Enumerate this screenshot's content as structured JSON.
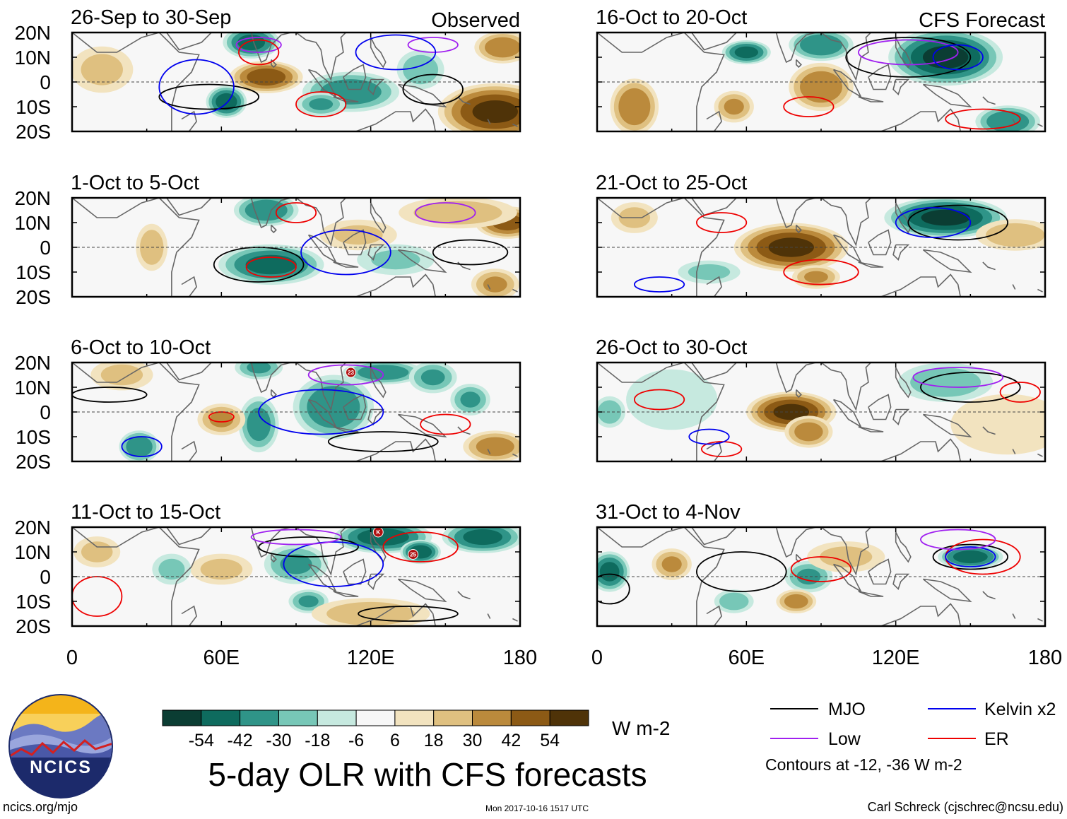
{
  "chart_data": {
    "type": "heatmap",
    "title": "5-day OLR with CFS forecasts",
    "variable": "OLR anomaly",
    "units": "W m-2",
    "xlim": [
      0,
      180
    ],
    "ylim": [
      -20,
      20
    ],
    "xticks": [
      "0",
      "60E",
      "120E",
      "180"
    ],
    "yticks": [
      "20N",
      "10N",
      "0",
      "10S",
      "20S"
    ],
    "contour_note": "Contours at -12, -36 W m-2",
    "color_levels": [
      -54,
      -42,
      -30,
      -18,
      -6,
      6,
      18,
      30,
      42,
      54
    ],
    "color_levels_text": [
      "-54",
      "-42",
      "-30",
      "-18",
      "-6",
      "6",
      "18",
      "30",
      "42",
      "54"
    ],
    "palette": [
      "#0b3d33",
      "#0e6b5e",
      "#2f9488",
      "#77c7b7",
      "#c6e9df",
      "#f7f7f7",
      "#f2e3bf",
      "#dfc080",
      "#bb8a3c",
      "#8c5a15",
      "#4f3308"
    ],
    "legend": [
      {
        "label": "MJO",
        "color": "#000000"
      },
      {
        "label": "Kelvin x2",
        "color": "#0000ee"
      },
      {
        "label": "Low",
        "color": "#a020f0"
      },
      {
        "label": "ER",
        "color": "#ee0000"
      }
    ],
    "panels": [
      {
        "period": "26-Sep to 30-Sep",
        "tag": "Observed",
        "col": 0,
        "row": 0,
        "blobs": [
          {
            "lon": 78,
            "lat": 2,
            "v": 48,
            "sx": 9,
            "sy": 4
          },
          {
            "lon": 170,
            "lat": -12,
            "v": 55,
            "sx": 14,
            "sy": 7
          },
          {
            "lon": 173,
            "lat": 14,
            "v": 38,
            "sx": 7,
            "sy": 4
          },
          {
            "lon": 72,
            "lat": 16,
            "v": -45,
            "sx": 7,
            "sy": 4
          },
          {
            "lon": 112,
            "lat": -4,
            "v": -38,
            "sx": 12,
            "sy": 5
          },
          {
            "lon": 62,
            "lat": -8,
            "v": -48,
            "sx": 5,
            "sy": 4
          },
          {
            "lon": 12,
            "lat": 5,
            "v": 20,
            "sx": 8,
            "sy": 6
          },
          {
            "lon": 100,
            "lat": -9,
            "v": -30,
            "sx": 6,
            "sy": 3
          },
          {
            "lon": 140,
            "lat": 5,
            "v": -25,
            "sx": 6,
            "sy": 5
          }
        ],
        "contours": [
          {
            "type": "Low",
            "lon": 75,
            "lat": 15,
            "rx": 9,
            "ry": 3
          },
          {
            "type": "Low",
            "lon": 145,
            "lat": 15,
            "rx": 10,
            "ry": 3
          },
          {
            "type": "MJO",
            "lon": 55,
            "lat": -6,
            "rx": 20,
            "ry": 5
          },
          {
            "type": "MJO",
            "lon": 145,
            "lat": -3,
            "rx": 12,
            "ry": 6
          },
          {
            "type": "ER",
            "lon": 100,
            "lat": -9,
            "rx": 10,
            "ry": 5
          },
          {
            "type": "ER",
            "lon": 75,
            "lat": 12,
            "rx": 8,
            "ry": 5
          },
          {
            "type": "Kelvin x2",
            "lon": 50,
            "lat": -2,
            "rx": 15,
            "ry": 11
          },
          {
            "type": "Kelvin x2",
            "lon": 130,
            "lat": 12,
            "rx": 16,
            "ry": 7
          }
        ]
      },
      {
        "period": "1-Oct to 5-Oct",
        "tag": "",
        "col": 0,
        "row": 1,
        "blobs": [
          {
            "lon": 80,
            "lat": -7,
            "v": -45,
            "sx": 13,
            "sy": 5
          },
          {
            "lon": 78,
            "lat": 15,
            "v": -40,
            "sx": 8,
            "sy": 4
          },
          {
            "lon": 150,
            "lat": 16,
            "v": -38,
            "sx": 6,
            "sy": 3
          },
          {
            "lon": 175,
            "lat": 10,
            "v": 45,
            "sx": 8,
            "sy": 4
          },
          {
            "lon": 155,
            "lat": 14,
            "v": 25,
            "sx": 15,
            "sy": 4
          },
          {
            "lon": 32,
            "lat": 0,
            "v": 25,
            "sx": 4,
            "sy": 6
          },
          {
            "lon": 115,
            "lat": 5,
            "v": 18,
            "sx": 10,
            "sy": 4
          },
          {
            "lon": 170,
            "lat": -15,
            "v": 30,
            "sx": 6,
            "sy": 4
          },
          {
            "lon": 130,
            "lat": -5,
            "v": -18,
            "sx": 10,
            "sy": 4
          }
        ],
        "contours": [
          {
            "type": "MJO",
            "lon": 75,
            "lat": -7,
            "rx": 18,
            "ry": 7
          },
          {
            "type": "MJO",
            "lon": 160,
            "lat": -2,
            "rx": 15,
            "ry": 5
          },
          {
            "type": "Low",
            "lon": 150,
            "lat": 14,
            "rx": 12,
            "ry": 4
          },
          {
            "type": "Kelvin x2",
            "lon": 110,
            "lat": -2,
            "rx": 18,
            "ry": 9
          },
          {
            "type": "ER",
            "lon": 80,
            "lat": -8,
            "rx": 10,
            "ry": 4
          },
          {
            "type": "ER",
            "lon": 90,
            "lat": 14,
            "rx": 8,
            "ry": 4
          }
        ]
      },
      {
        "period": "6-Oct to 10-Oct",
        "tag": "",
        "col": 0,
        "row": 2,
        "blobs": [
          {
            "lon": 105,
            "lat": 2,
            "v": -40,
            "sx": 10,
            "sy": 8
          },
          {
            "lon": 75,
            "lat": -5,
            "v": -35,
            "sx": 5,
            "sy": 7
          },
          {
            "lon": 27,
            "lat": -14,
            "v": -40,
            "sx": 5,
            "sy": 4
          },
          {
            "lon": 125,
            "lat": 16,
            "v": -38,
            "sx": 10,
            "sy": 3
          },
          {
            "lon": 145,
            "lat": 14,
            "v": -30,
            "sx": 6,
            "sy": 4
          },
          {
            "lon": 160,
            "lat": 5,
            "v": -30,
            "sx": 5,
            "sy": 4
          },
          {
            "lon": 60,
            "lat": -3,
            "v": 30,
            "sx": 6,
            "sy": 4
          },
          {
            "lon": 170,
            "lat": -14,
            "v": 35,
            "sx": 8,
            "sy": 4
          },
          {
            "lon": 20,
            "lat": 15,
            "v": 20,
            "sx": 8,
            "sy": 4
          },
          {
            "lon": 75,
            "lat": 18,
            "v": -30,
            "sx": 6,
            "sy": 3
          }
        ],
        "contours": [
          {
            "type": "MJO",
            "lon": 125,
            "lat": -12,
            "rx": 22,
            "ry": 4
          },
          {
            "type": "MJO",
            "lon": 15,
            "lat": 7,
            "rx": 15,
            "ry": 3
          },
          {
            "type": "Low",
            "lon": 110,
            "lat": 15,
            "rx": 15,
            "ry": 4
          },
          {
            "type": "Kelvin x2",
            "lon": 100,
            "lat": 0,
            "rx": 25,
            "ry": 9
          },
          {
            "type": "Kelvin x2",
            "lon": 28,
            "lat": -14,
            "rx": 8,
            "ry": 4
          },
          {
            "type": "ER",
            "lon": 150,
            "lat": -5,
            "rx": 10,
            "ry": 4
          },
          {
            "type": "ER",
            "lon": 60,
            "lat": -2,
            "rx": 5,
            "ry": 2
          }
        ],
        "markers": [
          {
            "lon": 112,
            "lat": 16,
            "label": "23"
          }
        ]
      },
      {
        "period": "11-Oct to 15-Oct",
        "tag": "",
        "col": 0,
        "row": 3,
        "blobs": [
          {
            "lon": 125,
            "lat": 16,
            "v": -48,
            "sx": 12,
            "sy": 4
          },
          {
            "lon": 165,
            "lat": 16,
            "v": -45,
            "sx": 10,
            "sy": 4
          },
          {
            "lon": 140,
            "lat": 10,
            "v": -50,
            "sx": 5,
            "sy": 3
          },
          {
            "lon": 90,
            "lat": 5,
            "v": -30,
            "sx": 8,
            "sy": 5
          },
          {
            "lon": 95,
            "lat": -10,
            "v": -30,
            "sx": 5,
            "sy": 3
          },
          {
            "lon": 120,
            "lat": -15,
            "v": 25,
            "sx": 15,
            "sy": 4
          },
          {
            "lon": 60,
            "lat": 3,
            "v": 20,
            "sx": 8,
            "sy": 4
          },
          {
            "lon": 10,
            "lat": 10,
            "v": 20,
            "sx": 6,
            "sy": 4
          },
          {
            "lon": 40,
            "lat": 3,
            "v": -20,
            "sx": 5,
            "sy": 4
          }
        ],
        "contours": [
          {
            "type": "MJO",
            "lon": 135,
            "lat": -15,
            "rx": 20,
            "ry": 3
          },
          {
            "type": "MJO",
            "lon": 95,
            "lat": 12,
            "rx": 20,
            "ry": 4
          },
          {
            "type": "ER",
            "lon": 10,
            "lat": -8,
            "rx": 10,
            "ry": 8
          },
          {
            "type": "ER",
            "lon": 140,
            "lat": 12,
            "rx": 15,
            "ry": 6
          },
          {
            "type": "Kelvin x2",
            "lon": 105,
            "lat": 5,
            "rx": 20,
            "ry": 9
          },
          {
            "type": "Low",
            "lon": 90,
            "lat": 16,
            "rx": 18,
            "ry": 3
          }
        ],
        "markers": [
          {
            "lon": 123,
            "lat": 18,
            "label": "K"
          },
          {
            "lon": 137,
            "lat": 9,
            "label": "25"
          }
        ]
      },
      {
        "period": "16-Oct to 20-Oct",
        "tag": "CFS Forecast",
        "col": 1,
        "row": 0,
        "blobs": [
          {
            "lon": 140,
            "lat": 10,
            "v": -55,
            "sx": 14,
            "sy": 7
          },
          {
            "lon": 90,
            "lat": 15,
            "v": -40,
            "sx": 8,
            "sy": 4
          },
          {
            "lon": 60,
            "lat": 12,
            "v": -45,
            "sx": 6,
            "sy": 3
          },
          {
            "lon": 165,
            "lat": -16,
            "v": -40,
            "sx": 8,
            "sy": 4
          },
          {
            "lon": 90,
            "lat": -2,
            "v": 40,
            "sx": 8,
            "sy": 6
          },
          {
            "lon": 15,
            "lat": -10,
            "v": 40,
            "sx": 6,
            "sy": 7
          },
          {
            "lon": 55,
            "lat": -10,
            "v": 30,
            "sx": 5,
            "sy": 4
          }
        ],
        "contours": [
          {
            "type": "MJO",
            "lon": 125,
            "lat": 10,
            "rx": 25,
            "ry": 8
          },
          {
            "type": "ER",
            "lon": 85,
            "lat": -10,
            "rx": 10,
            "ry": 4
          },
          {
            "type": "ER",
            "lon": 155,
            "lat": -15,
            "rx": 15,
            "ry": 4
          },
          {
            "type": "Low",
            "lon": 125,
            "lat": 12,
            "rx": 20,
            "ry": 5
          },
          {
            "type": "Kelvin x2",
            "lon": 145,
            "lat": 10,
            "rx": 10,
            "ry": 5
          }
        ]
      },
      {
        "period": "21-Oct to 25-Oct",
        "tag": "",
        "col": 1,
        "row": 1,
        "blobs": [
          {
            "lon": 78,
            "lat": 0,
            "v": 55,
            "sx": 14,
            "sy": 6
          },
          {
            "lon": 140,
            "lat": 12,
            "v": -55,
            "sx": 15,
            "sy": 5
          },
          {
            "lon": 88,
            "lat": -12,
            "v": 30,
            "sx": 6,
            "sy": 3
          },
          {
            "lon": 168,
            "lat": 5,
            "v": 25,
            "sx": 10,
            "sy": 4
          },
          {
            "lon": 15,
            "lat": 12,
            "v": 20,
            "sx": 6,
            "sy": 4
          },
          {
            "lon": 45,
            "lat": -10,
            "v": -20,
            "sx": 8,
            "sy": 3
          }
        ],
        "contours": [
          {
            "type": "MJO",
            "lon": 145,
            "lat": 10,
            "rx": 20,
            "ry": 7
          },
          {
            "type": "ER",
            "lon": 90,
            "lat": -10,
            "rx": 15,
            "ry": 5
          },
          {
            "type": "ER",
            "lon": 50,
            "lat": 10,
            "rx": 10,
            "ry": 4
          },
          {
            "type": "Kelvin x2",
            "lon": 135,
            "lat": 10,
            "rx": 15,
            "ry": 6
          },
          {
            "type": "Kelvin x2",
            "lon": 25,
            "lat": -15,
            "rx": 10,
            "ry": 3
          }
        ]
      },
      {
        "period": "26-Oct to 30-Oct",
        "tag": "",
        "col": 1,
        "row": 2,
        "blobs": [
          {
            "lon": 78,
            "lat": 0,
            "v": 55,
            "sx": 11,
            "sy": 5
          },
          {
            "lon": 85,
            "lat": -8,
            "v": 35,
            "sx": 6,
            "sy": 4
          },
          {
            "lon": 140,
            "lat": 12,
            "v": -25,
            "sx": 12,
            "sy": 5
          },
          {
            "lon": 5,
            "lat": 0,
            "v": -25,
            "sx": 4,
            "sy": 4
          },
          {
            "lon": 30,
            "lat": 5,
            "v": -15,
            "sx": 12,
            "sy": 8
          },
          {
            "lon": 165,
            "lat": -5,
            "v": 15,
            "sx": 15,
            "sy": 8
          }
        ],
        "contours": [
          {
            "type": "MJO",
            "lon": 150,
            "lat": 10,
            "rx": 20,
            "ry": 6
          },
          {
            "type": "Low",
            "lon": 145,
            "lat": 14,
            "rx": 18,
            "ry": 4
          },
          {
            "type": "ER",
            "lon": 170,
            "lat": 8,
            "rx": 8,
            "ry": 4
          },
          {
            "type": "ER",
            "lon": 25,
            "lat": 5,
            "rx": 10,
            "ry": 4
          },
          {
            "type": "ER",
            "lon": 50,
            "lat": -15,
            "rx": 8,
            "ry": 3
          },
          {
            "type": "Kelvin x2",
            "lon": 45,
            "lat": -10,
            "rx": 8,
            "ry": 3
          }
        ]
      },
      {
        "period": "31-Oct to 4-Nov",
        "tag": "",
        "col": 1,
        "row": 3,
        "blobs": [
          {
            "lon": 150,
            "lat": 8,
            "v": -48,
            "sx": 8,
            "sy": 3
          },
          {
            "lon": 5,
            "lat": 2,
            "v": -45,
            "sx": 5,
            "sy": 5
          },
          {
            "lon": 85,
            "lat": 0,
            "v": -30,
            "sx": 6,
            "sy": 4
          },
          {
            "lon": 30,
            "lat": 5,
            "v": 30,
            "sx": 5,
            "sy": 4
          },
          {
            "lon": 80,
            "lat": -10,
            "v": 35,
            "sx": 5,
            "sy": 3
          },
          {
            "lon": 100,
            "lat": 8,
            "v": 20,
            "sx": 10,
            "sy": 4
          },
          {
            "lon": 55,
            "lat": -10,
            "v": -25,
            "sx": 5,
            "sy": 3
          }
        ],
        "contours": [
          {
            "type": "MJO",
            "lon": 58,
            "lat": 2,
            "rx": 18,
            "ry": 8
          },
          {
            "type": "MJO",
            "lon": 150,
            "lat": 8,
            "rx": 15,
            "ry": 5
          },
          {
            "type": "MJO",
            "lon": 5,
            "lat": -5,
            "rx": 8,
            "ry": 6
          },
          {
            "type": "ER",
            "lon": 155,
            "lat": 8,
            "rx": 15,
            "ry": 7
          },
          {
            "type": "ER",
            "lon": 90,
            "lat": 3,
            "rx": 12,
            "ry": 5
          },
          {
            "type": "Kelvin x2",
            "lon": 150,
            "lat": 8,
            "rx": 10,
            "ry": 4
          },
          {
            "type": "Low",
            "lon": 145,
            "lat": 15,
            "rx": 15,
            "ry": 4
          }
        ]
      }
    ]
  },
  "logo": {
    "text": "NCICS"
  },
  "footer": {
    "site": "ncics.org/mjo",
    "timestamp": "Mon 2017-10-16 1517 UTC",
    "author": "Carl Schreck (cjschrec@ncsu.edu)"
  }
}
